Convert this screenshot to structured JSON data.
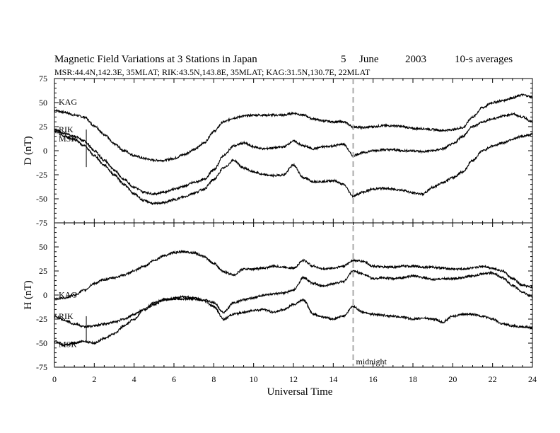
{
  "chart_data": {
    "type": "line",
    "title": "Magnetic Field Variations at 3 Stations in Japan",
    "date_day": "5",
    "date_month": "June",
    "date_year": "2003",
    "resolution": "10-s averages",
    "subtitle": "MSR:44.4N,142.3E, 35MLAT;  RIK:43.5N,143.8E, 35MLAT;  KAG:31.5N,130.7E, 22MLAT",
    "xlabel": "Universal Time",
    "xlim": [
      0,
      24
    ],
    "x_ticks": [
      "0",
      "2",
      "4",
      "6",
      "8",
      "10",
      "12",
      "14",
      "16",
      "18",
      "20",
      "22",
      "24"
    ],
    "midnight_label": "midnight",
    "midnight_ut": 15,
    "panels": [
      {
        "ylabel": "D (nT)",
        "ylim": [
          -75,
          75
        ],
        "y_ticks": [
          "75",
          "50",
          "25",
          "0",
          "-25",
          "-50",
          "-75"
        ],
        "series": [
          {
            "name": "KAG",
            "x": [
              0,
              0.5,
              1,
              1.5,
              2,
              2.5,
              3,
              3.5,
              4,
              4.5,
              5,
              5.5,
              6,
              6.5,
              7,
              7.5,
              8,
              8.5,
              9,
              9.5,
              10,
              10.5,
              11,
              11.5,
              12,
              12.5,
              13,
              13.5,
              14,
              14.5,
              15,
              15.5,
              16,
              16.5,
              17,
              17.5,
              18,
              18.5,
              19,
              19.5,
              20,
              20.5,
              21,
              21.5,
              22,
              22.5,
              23,
              23.5,
              24
            ],
            "values": [
              42,
              40,
              37,
              35,
              26,
              17,
              7,
              0,
              -5,
              -8,
              -10,
              -10,
              -8,
              -4,
              1,
              8,
              20,
              30,
              34,
              36,
              37,
              37,
              37,
              37,
              39,
              37,
              33,
              31,
              30,
              30,
              25,
              24,
              25,
              26,
              26,
              25,
              23,
              23,
              22,
              21,
              22,
              24,
              35,
              45,
              50,
              52,
              55,
              58,
              56
            ]
          },
          {
            "name": "RIK",
            "x": [
              0,
              0.5,
              1,
              1.5,
              2,
              2.5,
              3,
              3.5,
              4,
              4.5,
              5,
              5.5,
              6,
              6.5,
              7,
              7.5,
              8,
              8.5,
              9,
              9.5,
              10,
              10.5,
              11,
              11.5,
              12,
              12.5,
              13,
              13.5,
              14,
              14.5,
              15,
              15.5,
              16,
              16.5,
              17,
              17.5,
              18,
              18.5,
              19,
              19.5,
              20,
              20.5,
              21,
              21.5,
              22,
              22.5,
              23,
              23.5,
              24
            ],
            "values": [
              22,
              18,
              15,
              10,
              0,
              -10,
              -20,
              -30,
              -38,
              -43,
              -45,
              -43,
              -40,
              -37,
              -33,
              -30,
              -20,
              -5,
              5,
              8,
              4,
              2,
              3,
              4,
              10,
              5,
              2,
              4,
              5,
              7,
              -5,
              -2,
              0,
              1,
              1,
              0,
              0,
              -1,
              0,
              2,
              7,
              15,
              25,
              30,
              33,
              36,
              38,
              35,
              30
            ]
          },
          {
            "name": "MSR",
            "x": [
              0,
              0.5,
              1,
              1.5,
              2,
              2.5,
              3,
              3.5,
              4,
              4.5,
              5,
              5.5,
              6,
              6.5,
              7,
              7.5,
              8,
              8.5,
              9,
              9.5,
              10,
              10.5,
              11,
              11.5,
              12,
              12.5,
              13,
              13.5,
              14,
              14.5,
              15,
              15.5,
              16,
              16.5,
              17,
              17.5,
              18,
              18.5,
              19,
              19.5,
              20,
              20.5,
              21,
              21.5,
              22,
              22.5,
              23,
              23.5,
              24
            ],
            "values": [
              20,
              15,
              12,
              5,
              -5,
              -15,
              -25,
              -35,
              -45,
              -52,
              -55,
              -54,
              -51,
              -48,
              -44,
              -40,
              -30,
              -18,
              -10,
              -18,
              -22,
              -25,
              -26,
              -25,
              -15,
              -28,
              -32,
              -32,
              -31,
              -35,
              -47,
              -43,
              -40,
              -39,
              -40,
              -41,
              -44,
              -45,
              -38,
              -33,
              -28,
              -22,
              -10,
              0,
              5,
              8,
              12,
              15,
              17
            ]
          }
        ]
      },
      {
        "ylabel": "H (nT)",
        "ylim": [
          -75,
          75
        ],
        "y_ticks": [
          "75",
          "50",
          "25",
          "0",
          "-25",
          "-50",
          "-75"
        ],
        "series": [
          {
            "name": "KAG",
            "x": [
              0,
              0.5,
              1,
              1.5,
              2,
              2.5,
              3,
              3.5,
              4,
              4.5,
              5,
              5.5,
              6,
              6.5,
              7,
              7.5,
              8,
              8.5,
              9,
              9.5,
              10,
              10.5,
              11,
              11.5,
              12,
              12.5,
              13,
              13.5,
              14,
              14.5,
              15,
              15.5,
              16,
              16.5,
              17,
              17.5,
              18,
              18.5,
              19,
              19.5,
              20,
              20.5,
              21,
              21.5,
              22,
              22.5,
              23,
              23.5,
              24
            ],
            "values": [
              -4,
              -3,
              0,
              5,
              12,
              16,
              18,
              21,
              25,
              30,
              36,
              41,
              44,
              45,
              44,
              40,
              33,
              24,
              21,
              27,
              27,
              28,
              30,
              29,
              28,
              36,
              30,
              27,
              28,
              30,
              36,
              35,
              30,
              29,
              29,
              30,
              30,
              29,
              29,
              28,
              27,
              27,
              28,
              30,
              28,
              25,
              17,
              10,
              8
            ]
          },
          {
            "name": "RIK",
            "x": [
              0,
              0.5,
              1,
              1.5,
              2,
              2.5,
              3,
              3.5,
              4,
              4.5,
              5,
              5.5,
              6,
              6.5,
              7,
              7.5,
              8,
              8.5,
              9,
              9.5,
              10,
              10.5,
              11,
              11.5,
              12,
              12.5,
              13,
              13.5,
              14,
              14.5,
              15,
              15.5,
              16,
              16.5,
              17,
              17.5,
              18,
              18.5,
              19,
              19.5,
              20,
              20.5,
              21,
              21.5,
              22,
              22.5,
              23,
              23.5,
              24
            ],
            "values": [
              -22,
              -26,
              -30,
              -33,
              -32,
              -30,
              -28,
              -25,
              -20,
              -15,
              -10,
              -5,
              -3,
              -2,
              -3,
              -5,
              -8,
              -18,
              -8,
              -5,
              -3,
              0,
              1,
              2,
              5,
              18,
              12,
              9,
              12,
              14,
              25,
              22,
              17,
              18,
              17,
              18,
              20,
              18,
              16,
              17,
              17,
              18,
              20,
              22,
              23,
              18,
              10,
              3,
              -2
            ]
          },
          {
            "name": "MSR",
            "x": [
              0,
              0.5,
              1,
              1.5,
              2,
              2.5,
              3,
              3.5,
              4,
              4.5,
              5,
              5.5,
              6,
              6.5,
              7,
              7.5,
              8,
              8.5,
              9,
              9.5,
              10,
              10.5,
              11,
              11.5,
              12,
              12.5,
              13,
              13.5,
              14,
              14.5,
              15,
              15.5,
              16,
              16.5,
              17,
              17.5,
              18,
              18.5,
              19,
              19.5,
              20,
              20.5,
              21,
              21.5,
              22,
              22.5,
              23,
              23.5,
              24
            ],
            "values": [
              -48,
              -52,
              -50,
              -48,
              -50,
              -45,
              -40,
              -32,
              -25,
              -15,
              -8,
              -5,
              -4,
              -4,
              -4,
              -6,
              -12,
              -25,
              -20,
              -18,
              -16,
              -15,
              -18,
              -15,
              -10,
              -5,
              -20,
              -23,
              -25,
              -22,
              -12,
              -18,
              -20,
              -21,
              -22,
              -23,
              -25,
              -24,
              -25,
              -28,
              -22,
              -20,
              -20,
              -22,
              -25,
              -30,
              -32,
              -33,
              -34
            ]
          }
        ]
      }
    ]
  }
}
